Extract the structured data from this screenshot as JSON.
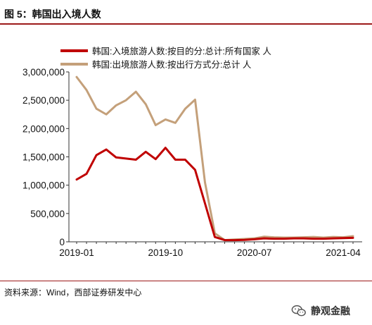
{
  "header": {
    "figure_title": "图 5：韩国出入境人数"
  },
  "source": {
    "text": "资料来源：Wind，西部证券研发中心"
  },
  "watermark": {
    "text": "静观金融",
    "icon": "wechat-icon"
  },
  "chart_data": {
    "type": "line",
    "title": "",
    "xlabel": "",
    "ylabel": "",
    "x": [
      "2019-01",
      "2019-02",
      "2019-03",
      "2019-04",
      "2019-05",
      "2019-06",
      "2019-07",
      "2019-08",
      "2019-09",
      "2019-10",
      "2019-11",
      "2019-12",
      "2020-01",
      "2020-02",
      "2020-03",
      "2020-04",
      "2020-05",
      "2020-06",
      "2020-07",
      "2020-08",
      "2020-09",
      "2020-10",
      "2020-11",
      "2020-12",
      "2021-01",
      "2021-02",
      "2021-03",
      "2021-04",
      "2021-05"
    ],
    "x_tick_labels": [
      "2019-01",
      "2019-10",
      "2020-07",
      "2021-04"
    ],
    "x_tick_positions": [
      0,
      9,
      18,
      27
    ],
    "ylim": [
      0,
      3000000
    ],
    "y_ticks": [
      0,
      500000,
      1000000,
      1500000,
      2000000,
      2500000,
      3000000
    ],
    "y_tick_labels": [
      "0",
      "500,000",
      "1,000,000",
      "1,500,000",
      "2,000,000",
      "2,500,000",
      "3,000,000"
    ],
    "grid": false,
    "legend_position": "top",
    "series": [
      {
        "name": "韩国:入境旅游人数:按目的分:总计:所有国家 人",
        "color": "#c00000",
        "values": [
          1100000,
          1200000,
          1530000,
          1630000,
          1490000,
          1470000,
          1450000,
          1590000,
          1460000,
          1660000,
          1450000,
          1450000,
          1270000,
          680000,
          85000,
          30000,
          30000,
          35000,
          45000,
          60000,
          55000,
          55000,
          60000,
          60000,
          55000,
          55000,
          60000,
          65000,
          70000
        ]
      },
      {
        "name": "韩国:出境旅游人数:按出行方式分:总计 人",
        "color": "#c4a07a",
        "values": [
          2910000,
          2680000,
          2350000,
          2250000,
          2410000,
          2500000,
          2650000,
          2430000,
          2060000,
          2160000,
          2100000,
          2350000,
          2510000,
          1050000,
          150000,
          30000,
          40000,
          50000,
          60000,
          90000,
          80000,
          75000,
          75000,
          80000,
          85000,
          75000,
          85000,
          80000,
          100000
        ]
      }
    ]
  }
}
